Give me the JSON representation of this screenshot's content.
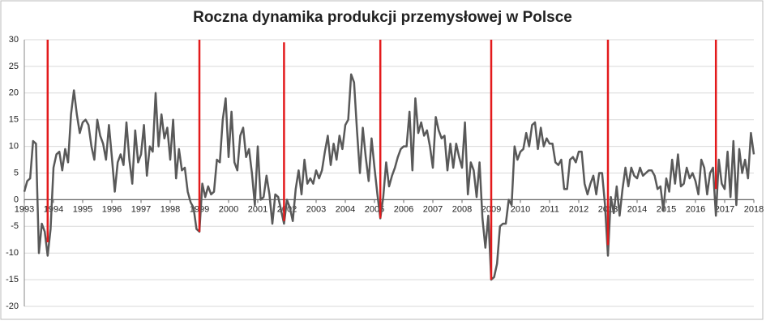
{
  "chart_data": {
    "type": "line",
    "title": "Roczna dynamika produkcji przemysłowej w Polsce",
    "x": [
      1993.0,
      1993.1,
      1993.2,
      1993.3,
      1993.4,
      1993.5,
      1993.6,
      1993.7,
      1993.8,
      1993.9,
      1994.0,
      1994.1,
      1994.2,
      1994.3,
      1994.4,
      1994.5,
      1994.6,
      1994.7,
      1994.8,
      1994.9,
      1995.0,
      1995.1,
      1995.2,
      1995.3,
      1995.4,
      1995.5,
      1995.6,
      1995.7,
      1995.8,
      1995.9,
      1996.0,
      1996.1,
      1996.2,
      1996.3,
      1996.4,
      1996.5,
      1996.6,
      1996.7,
      1996.8,
      1996.9,
      1997.0,
      1997.1,
      1997.2,
      1997.3,
      1997.4,
      1997.5,
      1997.6,
      1997.7,
      1997.8,
      1997.9,
      1998.0,
      1998.1,
      1998.2,
      1998.3,
      1998.4,
      1998.5,
      1998.6,
      1998.7,
      1998.8,
      1998.9,
      1999.0,
      1999.1,
      1999.2,
      1999.3,
      1999.4,
      1999.5,
      1999.6,
      1999.7,
      1999.8,
      1999.9,
      2000.0,
      2000.1,
      2000.2,
      2000.3,
      2000.4,
      2000.5,
      2000.6,
      2000.7,
      2000.8,
      2000.9,
      2001.0,
      2001.1,
      2001.2,
      2001.3,
      2001.4,
      2001.5,
      2001.6,
      2001.7,
      2001.8,
      2001.9,
      2002.0,
      2002.1,
      2002.2,
      2002.3,
      2002.4,
      2002.5,
      2002.6,
      2002.7,
      2002.8,
      2002.9,
      2003.0,
      2003.1,
      2003.2,
      2003.3,
      2003.4,
      2003.5,
      2003.6,
      2003.7,
      2003.8,
      2003.9,
      2004.0,
      2004.1,
      2004.2,
      2004.3,
      2004.4,
      2004.5,
      2004.6,
      2004.7,
      2004.8,
      2004.9,
      2005.0,
      2005.1,
      2005.2,
      2005.3,
      2005.4,
      2005.5,
      2005.6,
      2005.7,
      2005.8,
      2005.9,
      2006.0,
      2006.1,
      2006.2,
      2006.3,
      2006.4,
      2006.5,
      2006.6,
      2006.7,
      2006.8,
      2006.9,
      2007.0,
      2007.1,
      2007.2,
      2007.3,
      2007.4,
      2007.5,
      2007.6,
      2007.7,
      2007.8,
      2007.9,
      2008.0,
      2008.1,
      2008.2,
      2008.3,
      2008.4,
      2008.5,
      2008.6,
      2008.7,
      2008.8,
      2008.9,
      2009.0,
      2009.1,
      2009.2,
      2009.3,
      2009.4,
      2009.5,
      2009.6,
      2009.7,
      2009.8,
      2009.9,
      2010.0,
      2010.1,
      2010.2,
      2010.3,
      2010.4,
      2010.5,
      2010.6,
      2010.7,
      2010.8,
      2010.9,
      2011.0,
      2011.1,
      2011.2,
      2011.3,
      2011.4,
      2011.5,
      2011.6,
      2011.7,
      2011.8,
      2011.9,
      2012.0,
      2012.1,
      2012.2,
      2012.3,
      2012.4,
      2012.5,
      2012.6,
      2012.7,
      2012.8,
      2012.9,
      2013.0,
      2013.1,
      2013.2,
      2013.3,
      2013.4,
      2013.5,
      2013.6,
      2013.7,
      2013.8,
      2013.9,
      2014.0,
      2014.1,
      2014.2,
      2014.3,
      2014.4,
      2014.5,
      2014.6,
      2014.7,
      2014.8,
      2014.9,
      2015.0,
      2015.1,
      2015.2,
      2015.3,
      2015.4,
      2015.5,
      2015.6,
      2015.7,
      2015.8,
      2015.9,
      2016.0,
      2016.1,
      2016.2,
      2016.3,
      2016.4,
      2016.5,
      2016.6,
      2016.7,
      2016.8,
      2016.9,
      2017.0,
      2017.1,
      2017.2,
      2017.3,
      2017.4,
      2017.5,
      2017.6,
      2017.7,
      2017.8,
      2017.9,
      2018.0
    ],
    "values": [
      1.5,
      3.5,
      4,
      11,
      10.5,
      -10,
      -4.5,
      -6,
      -10.5,
      -5.5,
      6,
      8.5,
      9,
      5.5,
      9.5,
      7,
      16,
      20.5,
      16,
      12.5,
      14.5,
      15,
      14,
      10,
      7.5,
      15,
      12,
      10.5,
      7.5,
      14,
      8,
      1.5,
      7,
      8.5,
      6.5,
      14.5,
      7.5,
      3,
      13,
      7,
      8.5,
      14,
      4.5,
      10,
      9,
      20,
      10,
      16,
      11.5,
      13.5,
      7.5,
      15,
      4,
      9.5,
      5.5,
      6,
      1.5,
      -0.5,
      -1.5,
      -5.5,
      -6,
      3,
      0.5,
      2.5,
      1,
      1.5,
      7.5,
      7,
      15,
      19,
      8,
      16.5,
      7,
      5.5,
      12,
      13.5,
      8,
      9.5,
      5,
      -1,
      10,
      0,
      0.5,
      4.5,
      1,
      -4.5,
      1,
      0.5,
      -2,
      -4.5,
      0,
      -1.5,
      -4,
      2,
      5.5,
      1,
      7.5,
      3,
      4,
      3,
      5.5,
      4,
      5.5,
      9,
      12,
      6.5,
      10.5,
      7.5,
      12,
      9.5,
      14,
      15,
      23.5,
      22,
      13,
      5,
      13.5,
      8,
      3.5,
      11.5,
      6,
      1,
      -3.5,
      0.5,
      7,
      2.5,
      4.5,
      6,
      8,
      9.5,
      10,
      10,
      16.5,
      5.5,
      19,
      12.5,
      14.5,
      12,
      13,
      10,
      6,
      15.5,
      13,
      11.5,
      12,
      5.5,
      10.5,
      6,
      10.5,
      8,
      6,
      14.5,
      1,
      7,
      5.5,
      0.5,
      7,
      -3.5,
      -9,
      -3,
      -15,
      -14.5,
      -12,
      -5,
      -4.5,
      -4.5,
      0,
      -1,
      10,
      7.5,
      9,
      9.5,
      12.5,
      10,
      14,
      14.5,
      9.5,
      13.5,
      10,
      11.5,
      10.5,
      10.5,
      7,
      6.5,
      7.5,
      2,
      2,
      7.5,
      8,
      7,
      9,
      9,
      3,
      1,
      3,
      4.5,
      1,
      5,
      5,
      -1,
      -10.5,
      0.5,
      -2.5,
      2.5,
      -3,
      2,
      6,
      2.5,
      6,
      4.5,
      4,
      6,
      4.5,
      5,
      5.5,
      5.5,
      4.5,
      2,
      2.5,
      -2,
      4,
      1.5,
      7.5,
      3,
      8.5,
      2.5,
      3,
      6,
      4,
      5,
      3.5,
      1,
      7.5,
      6,
      1,
      5,
      6,
      -3,
      7.5,
      3,
      2,
      9,
      0.5,
      11,
      -1,
      9.5,
      5,
      7.5,
      4,
      12.5,
      8.5
    ],
    "color": "#595959",
    "vlines": [
      {
        "x": 1993.8,
        "y": [
          -8,
          30
        ]
      },
      {
        "x": 1999.0,
        "y": [
          -6,
          30
        ]
      },
      {
        "x": 2001.9,
        "y": [
          -4,
          29.5
        ]
      },
      {
        "x": 2005.2,
        "y": [
          -3.5,
          30
        ]
      },
      {
        "x": 2009.0,
        "y": [
          -15,
          30
        ]
      },
      {
        "x": 2013.0,
        "y": [
          -8.5,
          30
        ]
      },
      {
        "x": 2016.7,
        "y": [
          2,
          30
        ]
      }
    ],
    "vline_color": "#e31a1c",
    "xlim": [
      1993,
      2018
    ],
    "xticks": [
      1993,
      1994,
      1995,
      1996,
      1997,
      1998,
      1999,
      2000,
      2001,
      2002,
      2003,
      2004,
      2005,
      2006,
      2007,
      2008,
      2009,
      2010,
      2011,
      2012,
      2013,
      2014,
      2015,
      2016,
      2017,
      2018
    ],
    "ylim": [
      -20,
      30
    ],
    "yticks": [
      -20,
      -15,
      -10,
      -5,
      0,
      5,
      10,
      15,
      20,
      25,
      30
    ],
    "grid": true
  }
}
